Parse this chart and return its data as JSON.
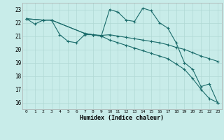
{
  "xlabel": "Humidex (Indice chaleur)",
  "background_color": "#c8ece9",
  "grid_color": "#b0d8d4",
  "line_color": "#1a6b6a",
  "xlim": [
    -0.5,
    23.5
  ],
  "ylim": [
    15.5,
    23.5
  ],
  "xticks": [
    0,
    1,
    2,
    3,
    4,
    5,
    6,
    7,
    8,
    9,
    10,
    11,
    12,
    13,
    14,
    15,
    16,
    17,
    18,
    19,
    20,
    21,
    22,
    23
  ],
  "yticks": [
    16,
    17,
    18,
    19,
    20,
    21,
    22,
    23
  ],
  "line1_x": [
    0,
    1,
    2,
    3,
    4,
    5,
    6,
    7,
    8,
    9,
    10,
    11,
    12,
    13,
    14,
    15,
    16,
    17,
    18,
    19,
    20,
    21,
    22,
    23
  ],
  "line1_y": [
    22.3,
    21.9,
    22.2,
    22.2,
    21.1,
    20.6,
    20.5,
    21.1,
    21.1,
    21.0,
    23.0,
    22.8,
    22.2,
    22.1,
    23.1,
    22.9,
    22.0,
    21.6,
    20.5,
    19.0,
    18.5,
    17.2,
    17.4,
    16.0
  ],
  "line2_x": [
    0,
    2,
    3,
    7,
    8,
    9,
    10,
    11,
    12,
    13,
    14,
    15,
    16,
    17,
    18,
    19,
    20,
    21,
    22,
    23
  ],
  "line2_y": [
    22.3,
    22.2,
    22.2,
    21.2,
    21.1,
    21.05,
    21.1,
    21.0,
    20.9,
    20.8,
    20.7,
    20.6,
    20.5,
    20.35,
    20.15,
    20.0,
    19.75,
    19.5,
    19.3,
    19.1
  ],
  "line3_x": [
    0,
    2,
    3,
    7,
    8,
    9,
    10,
    11,
    12,
    13,
    14,
    15,
    16,
    17,
    18,
    19,
    20,
    21,
    22,
    23
  ],
  "line3_y": [
    22.3,
    22.2,
    22.2,
    21.2,
    21.1,
    21.0,
    20.7,
    20.5,
    20.3,
    20.1,
    19.9,
    19.7,
    19.5,
    19.3,
    18.9,
    18.5,
    17.8,
    17.0,
    16.3,
    16.0
  ]
}
